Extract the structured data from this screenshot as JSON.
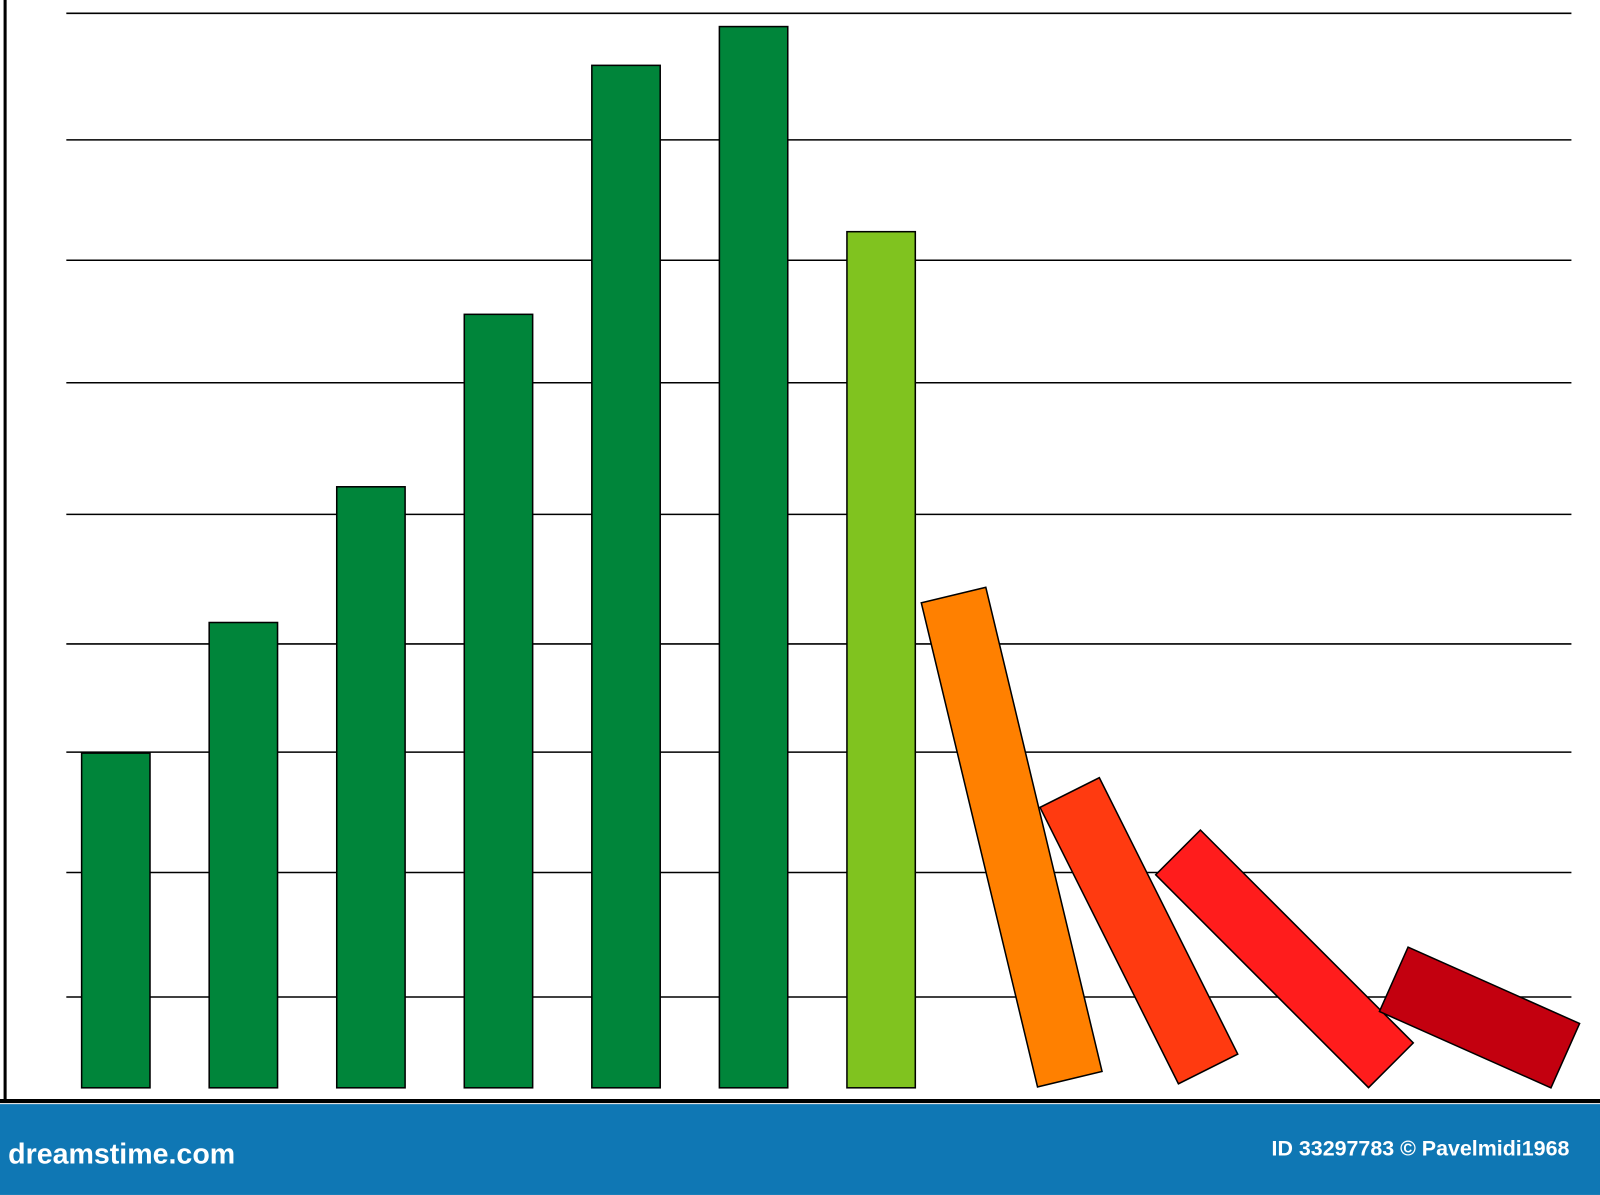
{
  "chart_data": {
    "type": "bar",
    "values": [
      340,
      468,
      601,
      770,
      1014,
      1052,
      851,
      488,
      303,
      295,
      184
    ],
    "colors": [
      "#00853a",
      "#00853a",
      "#00853a",
      "#00853a",
      "#00853a",
      "#00853a",
      "#80c31f",
      "#ff8000",
      "#ff3a10",
      "#ff1c1c",
      "#c3000f"
    ],
    "ylim": [
      0,
      1065
    ],
    "gridlines": [
      101,
      223,
      341,
      447,
      574,
      703,
      823,
      941,
      1065
    ],
    "grid": true
  },
  "footer": {
    "site": "dreamstime.com",
    "credit": "ID 33297783 © Pavelmidi1968"
  }
}
